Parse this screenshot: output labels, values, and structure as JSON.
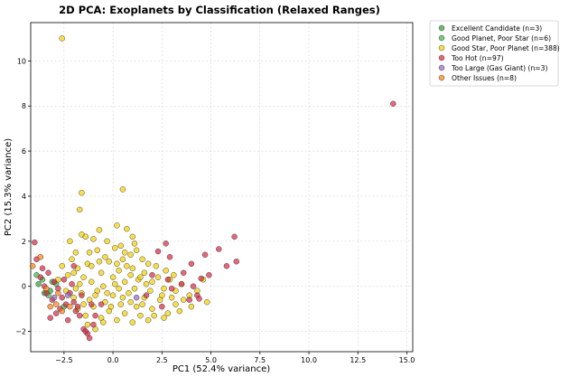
{
  "chart_data": {
    "type": "scatter",
    "title": "2D PCA: Exoplanets by Classification (Relaxed Ranges)",
    "xlabel": "PC1 (52.4% variance)",
    "ylabel": "PC2 (15.3% variance)",
    "xlim": [
      -4.2,
      15.3
    ],
    "ylim": [
      -2.9,
      11.7
    ],
    "x_ticks": [
      -2.5,
      0.0,
      2.5,
      5.0,
      7.5,
      10.0,
      12.5,
      15.0
    ],
    "x_tick_labels": [
      "−2.5",
      "0.0",
      "2.5",
      "5.0",
      "7.5",
      "10.0",
      "12.5",
      "15.0"
    ],
    "y_ticks": [
      -2,
      0,
      2,
      4,
      6,
      8,
      10
    ],
    "y_tick_labels": [
      "−2",
      "0",
      "2",
      "4",
      "6",
      "8",
      "10"
    ],
    "grid": true,
    "legend_position": "outside-right-top",
    "series": [
      {
        "name": "Excellent Candidate (n=3)",
        "color": "#2ca02c",
        "points": [
          [
            -3.2,
            -0.2
          ],
          [
            -3.8,
            0.1
          ],
          [
            -3.5,
            -0.3
          ]
        ]
      },
      {
        "name": "Good Planet, Poor Star (n=6)",
        "color": "#3cb44b",
        "points": [
          [
            -3.9,
            0.5
          ],
          [
            -3.3,
            -0.4
          ],
          [
            -3.6,
            0.3
          ],
          [
            -2.9,
            0.1
          ],
          [
            -3.1,
            0.2
          ],
          [
            -2.5,
            -0.9
          ]
        ]
      },
      {
        "name": "Good Star, Poor Planet (n=388)",
        "color": "#f4d200",
        "points": [
          [
            -2.6,
            11.0
          ],
          [
            0.5,
            4.3
          ],
          [
            -1.6,
            4.15
          ],
          [
            -1.7,
            3.4
          ],
          [
            -1.6,
            2.3
          ],
          [
            0.7,
            2.55
          ],
          [
            -1.0,
            2.1
          ],
          [
            -0.8,
            1.6
          ],
          [
            -1.9,
            1.5
          ],
          [
            -0.4,
            1.3
          ],
          [
            -0.2,
            1.1
          ],
          [
            0.2,
            1.0
          ],
          [
            0.4,
            1.8
          ],
          [
            1.1,
            1.9
          ],
          [
            1.2,
            1.6
          ],
          [
            0.9,
            1.4
          ],
          [
            -1.3,
            1.0
          ],
          [
            -2.1,
            1.2
          ],
          [
            -2.3,
            0.5
          ],
          [
            -1.8,
            0.8
          ],
          [
            -1.5,
            0.4
          ],
          [
            -1.1,
            0.9
          ],
          [
            -0.6,
            0.6
          ],
          [
            0.0,
            0.4
          ],
          [
            0.3,
            0.7
          ],
          [
            0.6,
            0.2
          ],
          [
            0.9,
            0.5
          ],
          [
            1.3,
            0.3
          ],
          [
            1.6,
            0.6
          ],
          [
            2.0,
            0.2
          ],
          [
            2.3,
            0.4
          ],
          [
            2.6,
            -0.1
          ],
          [
            2.9,
            0.3
          ],
          [
            3.2,
            -0.2
          ],
          [
            3.5,
            0.1
          ],
          [
            3.9,
            -0.4
          ],
          [
            4.3,
            -0.2
          ],
          [
            4.6,
            0.3
          ],
          [
            -2.4,
            -0.2
          ],
          [
            -2.0,
            -0.5
          ],
          [
            -1.6,
            -0.3
          ],
          [
            -1.2,
            -0.6
          ],
          [
            -0.8,
            -0.2
          ],
          [
            -0.4,
            -0.7
          ],
          [
            0.0,
            -0.4
          ],
          [
            0.4,
            -0.8
          ],
          [
            0.8,
            -0.3
          ],
          [
            1.2,
            -0.9
          ],
          [
            1.6,
            -0.5
          ],
          [
            2.0,
            -1.0
          ],
          [
            2.4,
            -0.6
          ],
          [
            2.8,
            -1.2
          ],
          [
            3.2,
            -0.8
          ],
          [
            3.6,
            -0.6
          ],
          [
            -1.8,
            -1.0
          ],
          [
            -1.4,
            -1.3
          ],
          [
            -1.0,
            -0.9
          ],
          [
            -0.6,
            -1.4
          ],
          [
            -0.2,
            -1.1
          ],
          [
            0.2,
            -1.5
          ],
          [
            0.6,
            -1.2
          ],
          [
            1.0,
            -1.6
          ],
          [
            1.4,
            -1.3
          ],
          [
            1.8,
            -1.5
          ],
          [
            -1.3,
            -1.7
          ],
          [
            -0.9,
            -1.9
          ],
          [
            -0.5,
            -1.6
          ],
          [
            -0.1,
            -0.9
          ],
          [
            0.3,
            -0.1
          ],
          [
            0.7,
            0.9
          ],
          [
            1.5,
            1.2
          ],
          [
            1.8,
            1.0
          ],
          [
            -0.3,
            2.0
          ],
          [
            0.1,
            1.7
          ],
          [
            0.5,
            1.2
          ],
          [
            -2.2,
            2.0
          ],
          [
            -1.4,
            2.2
          ],
          [
            -0.7,
            1.1
          ],
          [
            1.0,
            0.8
          ],
          [
            2.2,
            0.9
          ],
          [
            2.7,
            0.7
          ],
          [
            3.1,
            0.5
          ],
          [
            -2.6,
            0.9
          ],
          [
            -2.8,
            0.3
          ],
          [
            -1.9,
            -0.1
          ],
          [
            -1.1,
            0.2
          ],
          [
            -0.5,
            0.0
          ],
          [
            0.1,
            0.1
          ],
          [
            0.5,
            -0.5
          ],
          [
            1.1,
            -0.1
          ],
          [
            1.9,
            -0.2
          ],
          [
            2.5,
            -0.4
          ],
          [
            3.0,
            -0.5
          ],
          [
            3.4,
            -1.1
          ],
          [
            4.0,
            -0.9
          ],
          [
            4.8,
            -0.7
          ],
          [
            -1.7,
            0.1
          ],
          [
            -1.5,
            -0.8
          ],
          [
            -0.9,
            -0.4
          ],
          [
            -0.3,
            -0.3
          ],
          [
            0.9,
            -0.7
          ],
          [
            1.5,
            -0.8
          ],
          [
            2.1,
            -1.3
          ],
          [
            2.6,
            -1.4
          ],
          [
            -0.7,
            2.5
          ],
          [
            0.2,
            2.7
          ],
          [
            1.0,
            2.2
          ],
          [
            1.4,
            0.4
          ],
          [
            -2.0,
            0.6
          ],
          [
            -1.2,
            1.5
          ],
          [
            0.6,
            1.5
          ],
          [
            1.7,
            0.1
          ]
        ]
      },
      {
        "name": "Too Hot (n=97)",
        "color": "#d62743",
        "points": [
          [
            14.3,
            8.1
          ],
          [
            6.2,
            2.2
          ],
          [
            6.3,
            1.1
          ],
          [
            5.8,
            0.9
          ],
          [
            5.4,
            1.65
          ],
          [
            4.7,
            1.4
          ],
          [
            4.9,
            0.5
          ],
          [
            4.5,
            0.35
          ],
          [
            4.1,
            0.0
          ],
          [
            4.3,
            -0.4
          ],
          [
            4.4,
            -0.55
          ],
          [
            3.9,
            -0.6
          ],
          [
            4.0,
            1.0
          ],
          [
            3.5,
            0.1
          ],
          [
            3.6,
            0.6
          ],
          [
            2.8,
            0.3
          ],
          [
            2.7,
            1.9
          ],
          [
            2.9,
            1.3
          ],
          [
            2.3,
            1.55
          ],
          [
            2.0,
            0.5
          ],
          [
            -4.0,
            1.95
          ],
          [
            -3.9,
            1.2
          ],
          [
            -3.7,
            0.4
          ],
          [
            -3.5,
            0.0
          ],
          [
            -3.4,
            -0.3
          ],
          [
            -3.3,
            0.6
          ],
          [
            -3.1,
            -0.6
          ],
          [
            -3.0,
            0.2
          ],
          [
            -2.8,
            -0.1
          ],
          [
            -2.6,
            -0.5
          ],
          [
            -2.5,
            0.3
          ],
          [
            -2.4,
            -0.8
          ],
          [
            -2.2,
            -0.3
          ],
          [
            -2.1,
            0.1
          ],
          [
            -2.0,
            -0.7
          ],
          [
            -1.9,
            -1.1
          ],
          [
            -1.8,
            -0.9
          ],
          [
            -1.7,
            -1.3
          ],
          [
            -1.5,
            -1.9
          ],
          [
            -1.3,
            -2.1
          ],
          [
            -1.2,
            -2.3
          ],
          [
            -1.0,
            -1.7
          ],
          [
            -2.7,
            -1.0
          ],
          [
            -2.3,
            -1.5
          ],
          [
            -2.9,
            -1.2
          ],
          [
            -3.2,
            -1.4
          ],
          [
            -1.6,
            -0.4
          ],
          [
            -1.1,
            -0.8
          ],
          [
            -0.9,
            -1.3
          ],
          [
            -0.6,
            -0.8
          ],
          [
            1.7,
            -0.4
          ],
          [
            2.5,
            -0.9
          ],
          [
            3.0,
            -0.1
          ],
          [
            -3.6,
            0.8
          ],
          [
            -2.0,
            0.9
          ],
          [
            -1.4,
            -2.0
          ]
        ]
      },
      {
        "name": "Too Large (Gas Giant) (n=3)",
        "color": "#9467bd",
        "points": [
          [
            -2.3,
            -0.4
          ],
          [
            -3.0,
            -0.5
          ],
          [
            1.2,
            -0.5
          ]
        ]
      },
      {
        "name": "Other Issues (n=8)",
        "color": "#ff7f0e",
        "points": [
          [
            -4.1,
            0.9
          ],
          [
            -3.7,
            1.3
          ],
          [
            -3.2,
            -0.9
          ],
          [
            -2.9,
            -0.8
          ],
          [
            -2.6,
            -1.1
          ],
          [
            -2.8,
            -0.3
          ],
          [
            -3.4,
            -0.1
          ],
          [
            -2.2,
            -0.9
          ]
        ]
      }
    ]
  }
}
